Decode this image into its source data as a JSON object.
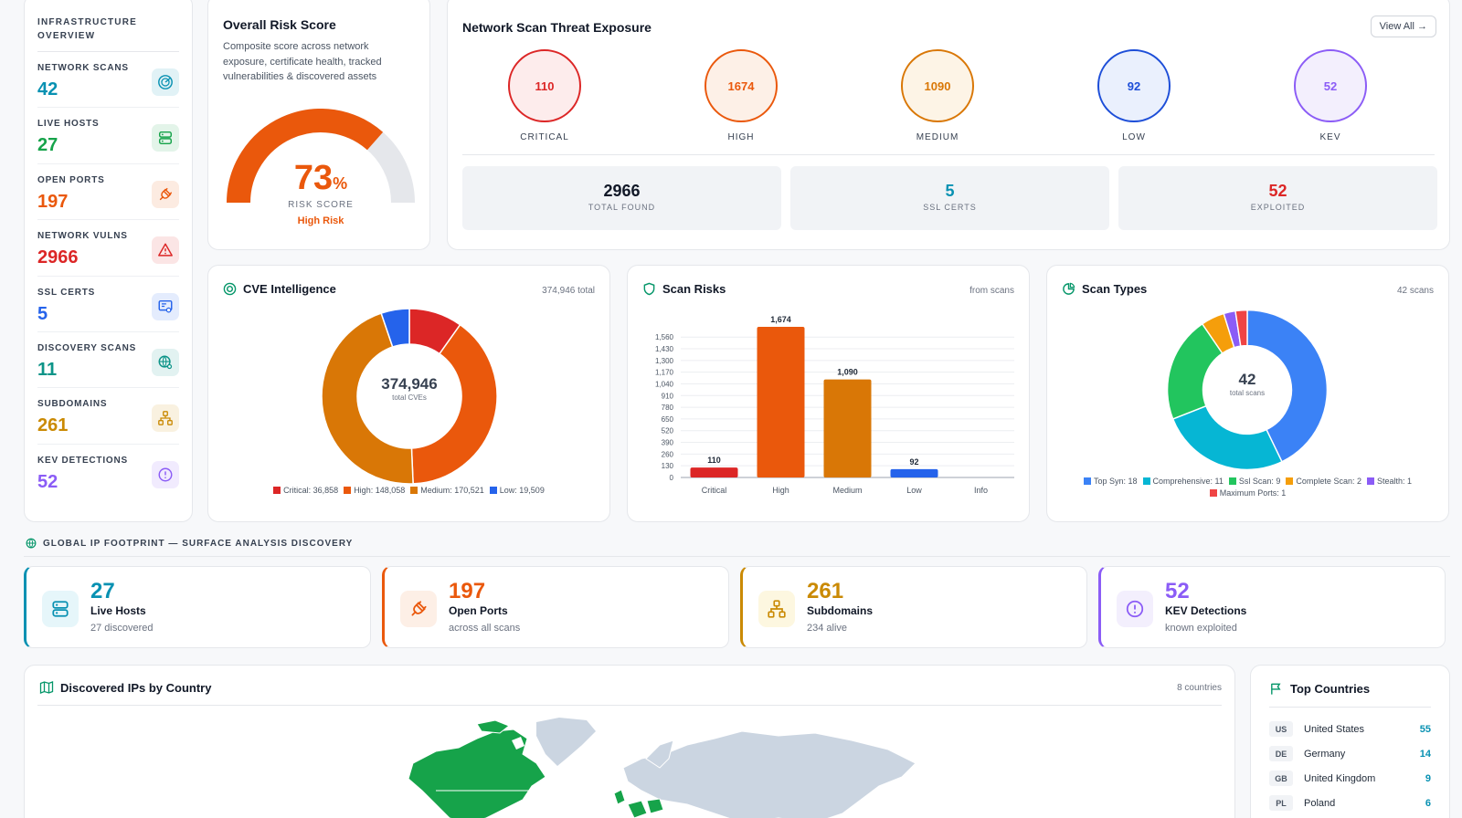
{
  "sidebar": {
    "heading": "INFRASTRUCTURE OVERVIEW",
    "items": [
      {
        "label": "NETWORK SCANS",
        "value": "42",
        "color": "#0891b2",
        "icon": "radar-icon"
      },
      {
        "label": "LIVE HOSTS",
        "value": "27",
        "color": "#16a34a",
        "icon": "server-icon"
      },
      {
        "label": "OPEN PORTS",
        "value": "197",
        "color": "#ea580c",
        "icon": "plug-icon"
      },
      {
        "label": "NETWORK VULNS",
        "value": "2966",
        "color": "#dc2626",
        "icon": "warning-icon"
      },
      {
        "label": "SSL CERTS",
        "value": "5",
        "color": "#2563eb",
        "icon": "certificate-icon"
      },
      {
        "label": "DISCOVERY SCANS",
        "value": "11",
        "color": "#0d9488",
        "icon": "globe-search-icon"
      },
      {
        "label": "SUBDOMAINS",
        "value": "261",
        "color": "#ca8a04",
        "icon": "network-icon"
      },
      {
        "label": "KEV DETECTIONS",
        "value": "52",
        "color": "#8b5cf6",
        "icon": "alert-circle-icon"
      }
    ]
  },
  "risk": {
    "title": "Overall Risk Score",
    "description": "Composite score across network exposure, certificate health, tracked vulnerabilities & discovered assets",
    "value": "73",
    "pct": "%",
    "label": "RISK SCORE",
    "level": "High Risk",
    "fraction": 0.73
  },
  "threat": {
    "title": "Network Scan Threat Exposure",
    "view_all": "View All →",
    "severities": [
      {
        "label": "CRITICAL",
        "value": "110",
        "color": "#dc2626",
        "bg": "#fdecec"
      },
      {
        "label": "HIGH",
        "value": "1674",
        "color": "#ea580c",
        "bg": "#fdf0e7"
      },
      {
        "label": "MEDIUM",
        "value": "1090",
        "color": "#d97706",
        "bg": "#fdf4e6"
      },
      {
        "label": "LOW",
        "value": "92",
        "color": "#1d4ed8",
        "bg": "#eaf0fd"
      },
      {
        "label": "KEV",
        "value": "52",
        "color": "#8b5cf6",
        "bg": "#f3effd"
      }
    ],
    "totals": [
      {
        "label": "TOTAL FOUND",
        "value": "2966",
        "color": "#111827"
      },
      {
        "label": "SSL CERTS",
        "value": "5",
        "color": "#0891b2"
      },
      {
        "label": "EXPLOITED",
        "value": "52",
        "color": "#dc2626"
      }
    ]
  },
  "cve": {
    "title": "CVE Intelligence",
    "meta": "374,946 total",
    "center_value": "374,946",
    "center_label": "total CVEs",
    "legend": [
      "Critical: 36,858",
      "High: 148,058",
      "Medium: 170,521",
      "Low: 19,509"
    ]
  },
  "scan_risks": {
    "title": "Scan Risks",
    "meta": "from scans"
  },
  "scan_types": {
    "title": "Scan Types",
    "meta": "42 scans",
    "center_value": "42",
    "center_label": "total scans",
    "legend": [
      "Top Syn: 18",
      "Comprehensive: 11",
      "Ssl Scan: 9",
      "Complete Scan: 2",
      "Stealth: 1",
      "Maximum Ports: 1"
    ]
  },
  "chart_data": [
    {
      "type": "pie",
      "title": "CVE Intelligence",
      "categories": [
        "Critical",
        "High",
        "Medium",
        "Low"
      ],
      "values": [
        36858,
        148058,
        170521,
        19509
      ],
      "colors": [
        "#dc2626",
        "#ea580c",
        "#d97706",
        "#2563eb"
      ]
    },
    {
      "type": "bar",
      "title": "Scan Risks",
      "categories": [
        "Critical",
        "High",
        "Medium",
        "Low",
        "Info"
      ],
      "values": [
        110,
        1674,
        1090,
        92,
        0
      ],
      "data_labels": [
        "110",
        "1,674",
        "1,090",
        "92",
        ""
      ],
      "colors": [
        "#dc2626",
        "#ea580c",
        "#d97706",
        "#2563eb",
        "#9ca3af"
      ],
      "yticks": [
        "0",
        "130",
        "260",
        "390",
        "520",
        "650",
        "780",
        "910",
        "1,040",
        "1,170",
        "1,300",
        "1,430",
        "1,560"
      ],
      "ylim": [
        0,
        1674
      ],
      "grid": true
    },
    {
      "type": "pie",
      "title": "Scan Types",
      "categories": [
        "Top Syn",
        "Comprehensive",
        "Ssl Scan",
        "Complete Scan",
        "Stealth",
        "Maximum Ports"
      ],
      "values": [
        18,
        11,
        9,
        2,
        1,
        1
      ],
      "colors": [
        "#3b82f6",
        "#06b6d4",
        "#22c55e",
        "#f59e0b",
        "#8b5cf6",
        "#ef4444"
      ]
    }
  ],
  "footprint": {
    "heading": "GLOBAL IP FOOTPRINT — SURFACE ANALYSIS DISCOVERY",
    "stats": [
      {
        "value": "27",
        "label": "Live Hosts",
        "sub": "27 discovered",
        "color": "#0891b2",
        "bg": "#e6f6fa",
        "icon": "server-icon"
      },
      {
        "value": "197",
        "label": "Open Ports",
        "sub": "across all scans",
        "color": "#ea580c",
        "bg": "#fdefe6",
        "icon": "plug-icon"
      },
      {
        "value": "261",
        "label": "Subdomains",
        "sub": "234 alive",
        "color": "#ca8a04",
        "bg": "#fdf7e0",
        "icon": "network-icon"
      },
      {
        "value": "52",
        "label": "KEV Detections",
        "sub": "known exploited",
        "color": "#8b5cf6",
        "bg": "#f3effd",
        "icon": "alert-circle-icon"
      }
    ]
  },
  "map": {
    "title": "Discovered IPs by Country",
    "meta": "8 countries"
  },
  "top_countries": {
    "title": "Top Countries",
    "rows": [
      {
        "code": "US",
        "name": "United States",
        "count": "55"
      },
      {
        "code": "DE",
        "name": "Germany",
        "count": "14"
      },
      {
        "code": "GB",
        "name": "United Kingdom",
        "count": "9"
      },
      {
        "code": "PL",
        "name": "Poland",
        "count": "6"
      }
    ]
  }
}
